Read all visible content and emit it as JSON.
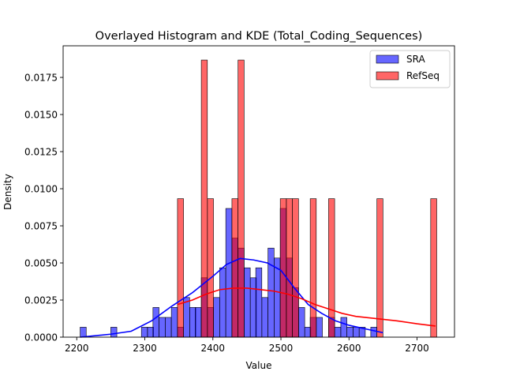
{
  "chart_data": {
    "type": "histogram",
    "title": "Overlayed Histogram and KDE (Total_Coding_Sequences)",
    "xlabel": "Value",
    "ylabel": "Density",
    "xlim": [
      2180,
      2755
    ],
    "ylim": [
      0,
      0.01963
    ],
    "x_ticks": [
      2200,
      2300,
      2400,
      2500,
      2600,
      2700
    ],
    "y_ticks": [
      0.0,
      0.0025,
      0.005,
      0.0075,
      0.01,
      0.0125,
      0.015,
      0.0175
    ],
    "y_tick_labels": [
      "0.0000",
      "0.0025",
      "0.0050",
      "0.0075",
      "0.0100",
      "0.0125",
      "0.0150",
      "0.0175"
    ],
    "grid": false,
    "legend_position": "top-right",
    "series": [
      {
        "name": "SRA",
        "color": "#0000ff",
        "bin_width": 8.9,
        "bins": [
          [
            2205,
            0.00067
          ],
          [
            2250,
            0.00067
          ],
          [
            2295,
            0.00067
          ],
          [
            2304,
            0.00067
          ],
          [
            2312,
            0.002
          ],
          [
            2321,
            0.00133
          ],
          [
            2330,
            0.00133
          ],
          [
            2339,
            0.002
          ],
          [
            2348,
            0.00067
          ],
          [
            2357,
            0.00267
          ],
          [
            2366,
            0.002
          ],
          [
            2374,
            0.002
          ],
          [
            2383,
            0.004
          ],
          [
            2392,
            0.002
          ],
          [
            2401,
            0.00267
          ],
          [
            2410,
            0.00467
          ],
          [
            2419,
            0.00867
          ],
          [
            2428,
            0.00667
          ],
          [
            2437,
            0.006
          ],
          [
            2446,
            0.00467
          ],
          [
            2455,
            0.004
          ],
          [
            2463,
            0.00467
          ],
          [
            2472,
            0.00267
          ],
          [
            2481,
            0.006
          ],
          [
            2490,
            0.00533
          ],
          [
            2499,
            0.00867
          ],
          [
            2508,
            0.00533
          ],
          [
            2517,
            0.00333
          ],
          [
            2526,
            0.002
          ],
          [
            2535,
            0.00067
          ],
          [
            2543,
            0.00133
          ],
          [
            2552,
            0.00133
          ],
          [
            2570,
            0.00133
          ],
          [
            2579,
            0.00067
          ],
          [
            2588,
            0.00133
          ],
          [
            2597,
            0.00067
          ],
          [
            2606,
            0.00067
          ],
          [
            2615,
            0.00067
          ],
          [
            2632,
            0.00067
          ]
        ],
        "kde": [
          [
            2205,
            0.0
          ],
          [
            2250,
            0.0002
          ],
          [
            2280,
            0.0004
          ],
          [
            2310,
            0.0011
          ],
          [
            2340,
            0.0021
          ],
          [
            2370,
            0.003
          ],
          [
            2400,
            0.0041
          ],
          [
            2420,
            0.0049
          ],
          [
            2440,
            0.0053
          ],
          [
            2460,
            0.0052
          ],
          [
            2480,
            0.005
          ],
          [
            2500,
            0.0045
          ],
          [
            2520,
            0.0033
          ],
          [
            2540,
            0.0022
          ],
          [
            2560,
            0.0016
          ],
          [
            2580,
            0.0011
          ],
          [
            2600,
            0.0008
          ],
          [
            2620,
            0.0006
          ],
          [
            2650,
            0.0003
          ]
        ]
      },
      {
        "name": "RefSeq",
        "color": "#ff0000",
        "bin_width": 8.9,
        "bins": [
          [
            2348,
            0.00933
          ],
          [
            2383,
            0.01867
          ],
          [
            2392,
            0.00933
          ],
          [
            2428,
            0.00933
          ],
          [
            2437,
            0.01867
          ],
          [
            2499,
            0.00933
          ],
          [
            2508,
            0.00933
          ],
          [
            2517,
            0.00933
          ],
          [
            2543,
            0.00933
          ],
          [
            2570,
            0.00933
          ],
          [
            2641,
            0.00933
          ],
          [
            2720,
            0.00933
          ]
        ],
        "kde": [
          [
            2348,
            0.0022
          ],
          [
            2370,
            0.0025
          ],
          [
            2390,
            0.0029
          ],
          [
            2410,
            0.0032
          ],
          [
            2430,
            0.0033
          ],
          [
            2450,
            0.0033
          ],
          [
            2470,
            0.0032
          ],
          [
            2490,
            0.0031
          ],
          [
            2510,
            0.0029
          ],
          [
            2530,
            0.0026
          ],
          [
            2550,
            0.0022
          ],
          [
            2570,
            0.0019
          ],
          [
            2590,
            0.0016
          ],
          [
            2610,
            0.0014
          ],
          [
            2630,
            0.0013
          ],
          [
            2650,
            0.0012
          ],
          [
            2670,
            0.0011
          ],
          [
            2700,
            0.0009
          ],
          [
            2727,
            0.00075
          ]
        ]
      }
    ]
  }
}
